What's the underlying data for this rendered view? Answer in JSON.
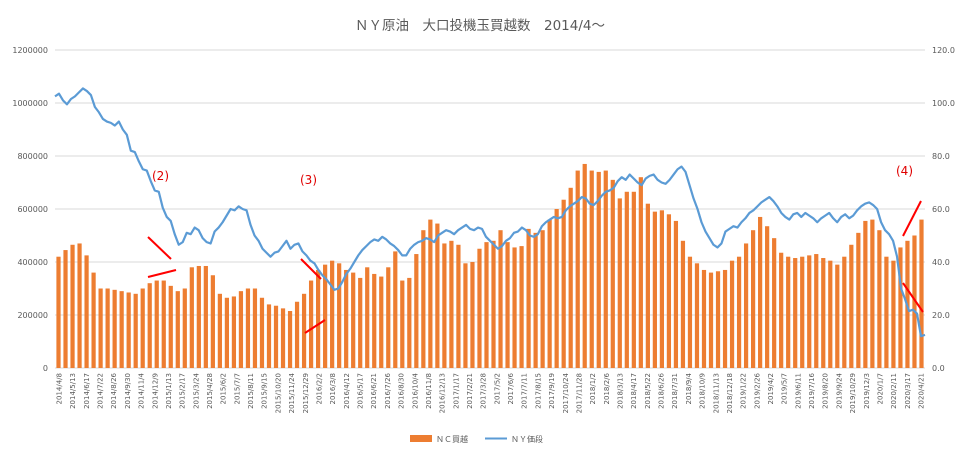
{
  "chart_data": {
    "type": "bar+line",
    "title": "ＮＹ原油　大口投機玉買越数　2014/4～",
    "left_axis": {
      "ylim": [
        0,
        1200000
      ],
      "ticks": [
        "0",
        "200000",
        "400000",
        "600000",
        "800000",
        "1000000",
        "1200000"
      ]
    },
    "right_axis": {
      "ylim": [
        0,
        120
      ],
      "ticks": [
        "0.0",
        "20.0",
        "40.0",
        "60.0",
        "80.0",
        "100.0",
        "120.0"
      ]
    },
    "x_tick_labels": [
      "2014/4/8",
      "2014/5/13",
      "2014/6/17",
      "2014/7/22",
      "2014/8/26",
      "2014/9/30",
      "2014/11/4",
      "2014/12/9",
      "2015/1/13",
      "2015/2/17",
      "2015/3/24",
      "2015/4/28",
      "2015/6/2",
      "2015/7/7",
      "2015/8/11",
      "2015/9/15",
      "2015/10/20",
      "2015/11/24",
      "2015/12/29",
      "2016/2/2",
      "2016/3/8",
      "2016/4/12",
      "2016/5/17",
      "2016/6/21",
      "2016/7/26",
      "2016/8/30",
      "2016/10/4",
      "2016/11/8",
      "2016/12/13",
      "2017/1/17",
      "2017/2/21",
      "2017/3/28",
      "2017/5/2",
      "2017/6/6",
      "2017/7/11",
      "2017/8/15",
      "2017/9/19",
      "2017/10/24",
      "2017/11/28",
      "2018/1/2",
      "2018/2/6",
      "2018/3/13",
      "2018/4/17",
      "2018/5/22",
      "2018/6/26",
      "2018/7/31",
      "2018/9/4",
      "2018/10/9",
      "2018/11/13",
      "2018/12/18",
      "2019/1/22",
      "2019/2/26",
      "2019/4/2",
      "2019/5/7",
      "2019/6/11",
      "2019/7/16",
      "2019/8/20",
      "2019/9/24",
      "2019/10/29",
      "2019/12/3",
      "2020/1/7",
      "2020/2/11",
      "2020/3/17",
      "2020/4/21"
    ],
    "series": [
      {
        "name": "ＮＣ買越",
        "kind": "bar",
        "axis": "left",
        "color": "#ed7d31",
        "values": [
          420000,
          445000,
          465000,
          470000,
          425000,
          360000,
          300000,
          300000,
          295000,
          290000,
          285000,
          280000,
          300000,
          320000,
          330000,
          330000,
          310000,
          290000,
          300000,
          380000,
          385000,
          385000,
          350000,
          280000,
          265000,
          270000,
          290000,
          300000,
          300000,
          265000,
          240000,
          235000,
          225000,
          215000,
          250000,
          280000,
          330000,
          370000,
          390000,
          405000,
          395000,
          370000,
          360000,
          340000,
          380000,
          355000,
          345000,
          380000,
          440000,
          330000,
          340000,
          430000,
          520000,
          560000,
          545000,
          470000,
          480000,
          465000,
          395000,
          400000,
          450000,
          475000,
          480000,
          520000,
          475000,
          455000,
          460000,
          525000,
          510000,
          520000,
          560000,
          600000,
          635000,
          680000,
          745000,
          770000,
          745000,
          740000,
          745000,
          710000,
          640000,
          665000,
          665000,
          720000,
          620000,
          590000,
          595000,
          580000,
          555000,
          480000,
          420000,
          395000,
          370000,
          360000,
          365000,
          370000,
          405000,
          420000,
          470000,
          520000,
          570000,
          535000,
          490000,
          435000,
          420000,
          415000,
          420000,
          425000,
          430000,
          415000,
          405000,
          390000,
          420000,
          465000,
          510000,
          555000,
          560000,
          520000,
          420000,
          405000,
          455000,
          480000,
          500000,
          560000
        ]
      },
      {
        "name": "ＮＹ価段",
        "kind": "line",
        "axis": "right",
        "color": "#5b9bd5",
        "values": [
          102.5,
          103.5,
          101.0,
          99.5,
          101.5,
          102.5,
          104.0,
          105.5,
          104.5,
          103.0,
          98.5,
          96.5,
          94.0,
          93.0,
          92.5,
          91.5,
          93.0,
          90.0,
          88.0,
          82.0,
          81.5,
          78.0,
          75.0,
          74.5,
          70.5,
          67.0,
          66.5,
          60.5,
          57.0,
          55.5,
          50.5,
          46.5,
          47.5,
          51.0,
          50.5,
          53.0,
          52.0,
          49.0,
          47.5,
          47.0,
          51.5,
          53.0,
          55.0,
          57.5,
          60.0,
          59.5,
          61.0,
          60.0,
          59.5,
          54.0,
          50.0,
          48.0,
          45.0,
          43.5,
          42.0,
          43.5,
          44.0,
          46.0,
          48.0,
          45.0,
          46.5,
          47.0,
          44.0,
          42.5,
          40.5,
          39.5,
          37.0,
          35.0,
          33.5,
          31.5,
          29.5,
          30.0,
          32.5,
          35.5,
          37.5,
          40.0,
          42.5,
          44.5,
          46.0,
          47.5,
          48.5,
          48.0,
          49.5,
          48.5,
          47.0,
          46.0,
          44.5,
          42.5,
          42.5,
          45.0,
          46.5,
          47.5,
          48.0,
          49.0,
          48.5,
          47.5,
          50.0,
          51.0,
          52.0,
          51.5,
          50.5,
          52.0,
          53.0,
          54.0,
          52.5,
          52.0,
          53.0,
          52.5,
          49.5,
          48.0,
          46.5,
          45.0,
          46.0,
          48.0,
          49.0,
          51.0,
          51.5,
          53.0,
          52.0,
          50.0,
          49.5,
          50.5,
          53.5,
          55.0,
          56.0,
          57.0,
          56.5,
          57.0,
          59.5,
          61.0,
          62.0,
          63.0,
          64.5,
          64.0,
          62.0,
          61.5,
          63.0,
          65.0,
          66.5,
          67.0,
          68.0,
          70.5,
          72.0,
          71.0,
          73.0,
          71.5,
          70.0,
          69.0,
          71.5,
          72.5,
          73.0,
          71.0,
          70.0,
          69.5,
          71.0,
          73.0,
          75.0,
          76.0,
          74.0,
          69.0,
          64.0,
          60.0,
          55.0,
          51.5,
          49.0,
          46.5,
          45.5,
          47.0,
          51.5,
          52.5,
          53.5,
          53.0,
          55.0,
          56.5,
          58.5,
          59.5,
          61.0,
          62.5,
          63.5,
          64.5,
          63.0,
          61.0,
          58.5,
          57.0,
          56.0,
          58.0,
          58.5,
          57.0,
          58.5,
          57.5,
          56.5,
          55.0,
          56.5,
          57.5,
          58.5,
          56.5,
          55.0,
          57.0,
          58.0,
          56.5,
          57.5,
          59.5,
          61.0,
          62.0,
          62.5,
          61.5,
          60.0,
          55.0,
          52.0,
          50.5,
          48.0,
          42.0,
          30.0,
          26.0,
          21.5,
          22.0,
          20.5,
          12.0,
          12.5
        ]
      }
    ],
    "annotations": [
      "(2)",
      "(3)",
      "(4)"
    ],
    "legend_position": "bottom",
    "grid": true
  }
}
